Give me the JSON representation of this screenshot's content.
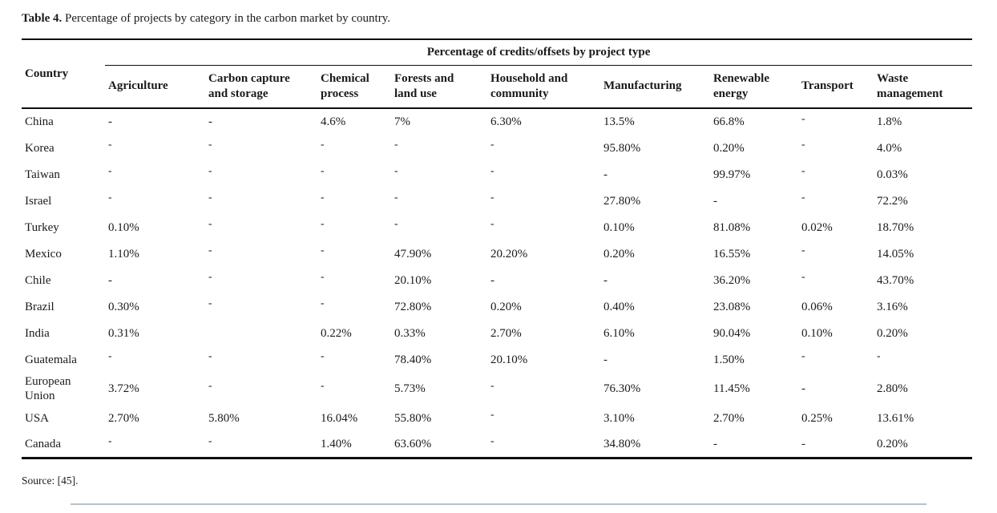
{
  "caption": {
    "label": "Table 4.",
    "text": " Percentage of projects by category in the carbon market by country."
  },
  "table": {
    "corner_header": "Country",
    "group_header": "Percentage of credits/offsets by project type",
    "columns": [
      "Agriculture",
      "Carbon capture\nand storage",
      "Chemical\nprocess",
      "Forests and\nland use",
      "Household and\ncommunity",
      "Manufacturing",
      "Renewable\nenergy",
      "Transport",
      "Waste\nmanagement"
    ],
    "rows": [
      {
        "country": "China",
        "cells": [
          "-",
          "-",
          "4.6%",
          "7%",
          "6.30%",
          "13.5%",
          "66.8%",
          {
            "text": "-",
            "sup": true
          },
          "1.8%"
        ]
      },
      {
        "country": "Korea",
        "cells": [
          {
            "text": "-",
            "sup": true
          },
          {
            "text": "-",
            "sup": true
          },
          {
            "text": "-",
            "sup": true
          },
          {
            "text": "-",
            "sup": true
          },
          {
            "text": "-",
            "sup": true
          },
          "95.80%",
          "0.20%",
          {
            "text": "-",
            "sup": true
          },
          "4.0%"
        ]
      },
      {
        "country": "Taiwan",
        "cells": [
          {
            "text": "-",
            "sup": true
          },
          {
            "text": "-",
            "sup": true
          },
          {
            "text": "-",
            "sup": true
          },
          {
            "text": "-",
            "sup": true
          },
          {
            "text": "-",
            "sup": true
          },
          "-",
          "99.97%",
          {
            "text": "-",
            "sup": true
          },
          "0.03%"
        ]
      },
      {
        "country": "Israel",
        "cells": [
          {
            "text": "-",
            "sup": true
          },
          {
            "text": "-",
            "sup": true
          },
          {
            "text": "-",
            "sup": true
          },
          {
            "text": "-",
            "sup": true
          },
          {
            "text": "-",
            "sup": true
          },
          "27.80%",
          "-",
          {
            "text": "-",
            "sup": true
          },
          "72.2%"
        ]
      },
      {
        "country": "Turkey",
        "cells": [
          "0.10%",
          {
            "text": "-",
            "sup": true
          },
          {
            "text": "-",
            "sup": true
          },
          {
            "text": "-",
            "sup": true
          },
          {
            "text": "-",
            "sup": true
          },
          "0.10%",
          "81.08%",
          "0.02%",
          "18.70%"
        ]
      },
      {
        "country": "Mexico",
        "cells": [
          "1.10%",
          {
            "text": "-",
            "sup": true
          },
          {
            "text": "-",
            "sup": true
          },
          "47.90%",
          "20.20%",
          "0.20%",
          "16.55%",
          {
            "text": "-",
            "sup": true
          },
          "14.05%"
        ]
      },
      {
        "country": "Chile",
        "cells": [
          "-",
          {
            "text": "-",
            "sup": true
          },
          {
            "text": "-",
            "sup": true
          },
          "20.10%",
          "-",
          "-",
          "36.20%",
          {
            "text": "-",
            "sup": true
          },
          "43.70%"
        ]
      },
      {
        "country": "Brazil",
        "cells": [
          "0.30%",
          {
            "text": "-",
            "sup": true
          },
          {
            "text": "-",
            "sup": true
          },
          "72.80%",
          "0.20%",
          "0.40%",
          "23.08%",
          "0.06%",
          "3.16%"
        ]
      },
      {
        "country": "India",
        "cells": [
          "0.31%",
          "",
          "0.22%",
          "0.33%",
          "2.70%",
          "6.10%",
          "90.04%",
          "0.10%",
          "0.20%"
        ]
      },
      {
        "country": "Guatemala",
        "cells": [
          {
            "text": "-",
            "sup": true
          },
          {
            "text": "-",
            "sup": true
          },
          {
            "text": "-",
            "sup": true
          },
          "78.40%",
          "20.10%",
          "-",
          "1.50%",
          {
            "text": "-",
            "sup": true
          },
          {
            "text": "-",
            "sup": true
          }
        ]
      },
      {
        "country": "European Union",
        "cells": [
          "3.72%",
          {
            "text": "-",
            "sup": true
          },
          {
            "text": "-",
            "sup": true
          },
          "5.73%",
          {
            "text": "-",
            "sup": true
          },
          "76.30%",
          "11.45%",
          "-",
          "2.80%"
        ]
      },
      {
        "country": "USA",
        "cells": [
          "2.70%",
          "5.80%",
          "16.04%",
          "55.80%",
          {
            "text": "-",
            "sup": true
          },
          "3.10%",
          "2.70%",
          "0.25%",
          "13.61%"
        ]
      },
      {
        "country": "Canada",
        "cells": [
          {
            "text": "-",
            "sup": true
          },
          {
            "text": "-",
            "sup": true
          },
          "1.40%",
          "63.60%",
          {
            "text": "-",
            "sup": true
          },
          "34.80%",
          "-",
          "-",
          "0.20%"
        ]
      }
    ]
  },
  "source_note": "Source: [45]."
}
